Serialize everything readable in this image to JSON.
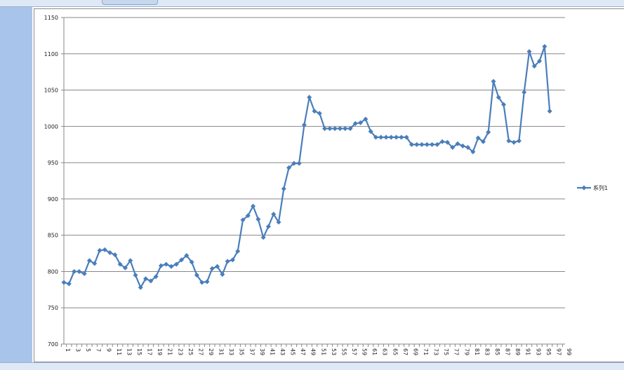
{
  "chart_data": {
    "type": "line",
    "title": "",
    "xlabel": "",
    "ylabel": "",
    "ylim": [
      700,
      1150
    ],
    "yticks": [
      700,
      750,
      800,
      850,
      900,
      950,
      1000,
      1050,
      1100,
      1150
    ],
    "xlim": [
      1,
      99
    ],
    "xtick_labels": [
      1,
      3,
      5,
      7,
      9,
      11,
      13,
      15,
      17,
      19,
      21,
      23,
      25,
      27,
      29,
      31,
      33,
      35,
      37,
      39,
      41,
      43,
      45,
      47,
      49,
      51,
      53,
      55,
      57,
      59,
      61,
      63,
      65,
      67,
      69,
      71,
      73,
      75,
      77,
      79,
      81,
      83,
      85,
      87,
      89,
      91,
      93,
      95,
      97,
      99
    ],
    "grid": true,
    "legend": "right",
    "color": "#4a7ebb",
    "series": [
      {
        "name": "系列1",
        "values": [
          785,
          783,
          800,
          800,
          797,
          815,
          811,
          829,
          830,
          826,
          823,
          810,
          805,
          815,
          795,
          778,
          790,
          787,
          793,
          808,
          810,
          807,
          810,
          816,
          822,
          813,
          795,
          785,
          786,
          804,
          807,
          796,
          814,
          816,
          828,
          871,
          877,
          890,
          872,
          847,
          862,
          879,
          868,
          914,
          943,
          949,
          949,
          1002,
          1040,
          1021,
          1018,
          997,
          997,
          997,
          997,
          997,
          997,
          1004,
          1005,
          1010,
          993,
          985,
          985,
          985,
          985,
          985,
          985,
          985,
          975,
          975,
          975,
          975,
          975,
          975,
          979,
          978,
          971,
          976,
          973,
          971,
          965,
          984,
          979,
          992,
          1062,
          1040,
          1030,
          980,
          978,
          980,
          1047,
          1103,
          1083,
          1090,
          1110,
          1021
        ]
      }
    ]
  }
}
